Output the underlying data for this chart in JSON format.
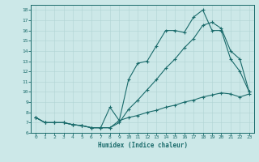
{
  "xlabel": "Humidex (Indice chaleur)",
  "bg_color": "#cce8e8",
  "line_color": "#1a6b6b",
  "xlim": [
    -0.5,
    23.5
  ],
  "ylim": [
    6.0,
    18.5
  ],
  "xticks": [
    0,
    1,
    2,
    3,
    4,
    5,
    6,
    7,
    8,
    9,
    10,
    11,
    12,
    13,
    14,
    15,
    16,
    17,
    18,
    19,
    20,
    21,
    22,
    23
  ],
  "yticks": [
    6,
    7,
    8,
    9,
    10,
    11,
    12,
    13,
    14,
    15,
    16,
    17,
    18
  ],
  "line1_x": [
    0,
    1,
    2,
    3,
    4,
    5,
    6,
    7,
    8,
    9,
    10,
    11,
    12,
    13,
    14,
    15,
    16,
    17,
    18,
    19,
    20,
    21,
    22,
    23
  ],
  "line1_y": [
    7.5,
    7.0,
    7.0,
    7.0,
    6.8,
    6.7,
    6.5,
    6.5,
    6.5,
    7.2,
    11.2,
    12.8,
    13.0,
    14.5,
    16.0,
    16.0,
    15.8,
    17.3,
    18.0,
    16.0,
    16.0,
    13.2,
    12.0,
    10.0
  ],
  "line2_x": [
    0,
    1,
    2,
    3,
    4,
    5,
    6,
    7,
    8,
    9,
    10,
    11,
    12,
    13,
    14,
    15,
    16,
    17,
    18,
    19,
    20,
    21,
    22,
    23
  ],
  "line2_y": [
    7.5,
    7.0,
    7.0,
    7.0,
    6.8,
    6.7,
    6.5,
    6.5,
    6.5,
    7.0,
    8.3,
    9.2,
    10.2,
    11.2,
    12.3,
    13.2,
    14.3,
    15.2,
    16.5,
    16.8,
    16.2,
    14.0,
    13.2,
    10.0
  ],
  "line3_x": [
    0,
    1,
    2,
    3,
    4,
    5,
    6,
    7,
    8,
    9,
    10,
    11,
    12,
    13,
    14,
    15,
    16,
    17,
    18,
    19,
    20,
    21,
    22,
    23
  ],
  "line3_y": [
    7.5,
    7.0,
    7.0,
    7.0,
    6.8,
    6.7,
    6.5,
    6.5,
    8.5,
    7.2,
    7.5,
    7.7,
    8.0,
    8.2,
    8.5,
    8.7,
    9.0,
    9.2,
    9.5,
    9.7,
    9.9,
    9.8,
    9.5,
    9.8
  ]
}
